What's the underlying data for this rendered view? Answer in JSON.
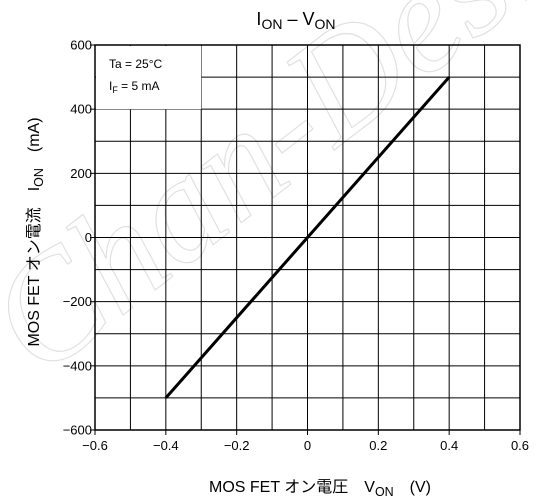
{
  "chart_data": {
    "type": "line",
    "title": {
      "main": "I",
      "main_sub": "ON",
      "sep": " – ",
      "second": "V",
      "second_sub": "ON"
    },
    "xlabel": {
      "text": "MOS FET オン電圧　V",
      "sub": "ON",
      "unit": "　(V)"
    },
    "ylabel": {
      "text": "MOS FET オン電流　I",
      "sub": "ON",
      "unit": "　(mA)"
    },
    "xlim": [
      -0.6,
      0.6
    ],
    "ylim": [
      -600,
      600
    ],
    "x_ticks": [
      "−0.6",
      "−0.4",
      "−0.2",
      "0",
      "0.2",
      "0.4",
      "0.6"
    ],
    "y_ticks": [
      "600",
      "400",
      "200",
      "0",
      "−200",
      "−400",
      "−600"
    ],
    "x_tick_values": [
      -0.6,
      -0.4,
      -0.2,
      0,
      0.2,
      0.4,
      0.6
    ],
    "y_tick_values": [
      600,
      400,
      200,
      0,
      -200,
      -400,
      -600
    ],
    "grid": true,
    "x_minor_step": 0.1,
    "y_minor_step": 100,
    "conditions": [
      {
        "text": "Ta = 25°C"
      },
      {
        "text": "I",
        "sub": "F",
        "rest": " = 5 mA"
      }
    ],
    "series": [
      {
        "x": [
          -0.4,
          0,
          0.4
        ],
        "y": [
          -500,
          0,
          500
        ]
      }
    ]
  },
  "watermark": {
    "text": "Chan-Desi",
    "color": "#c8c8c8"
  }
}
